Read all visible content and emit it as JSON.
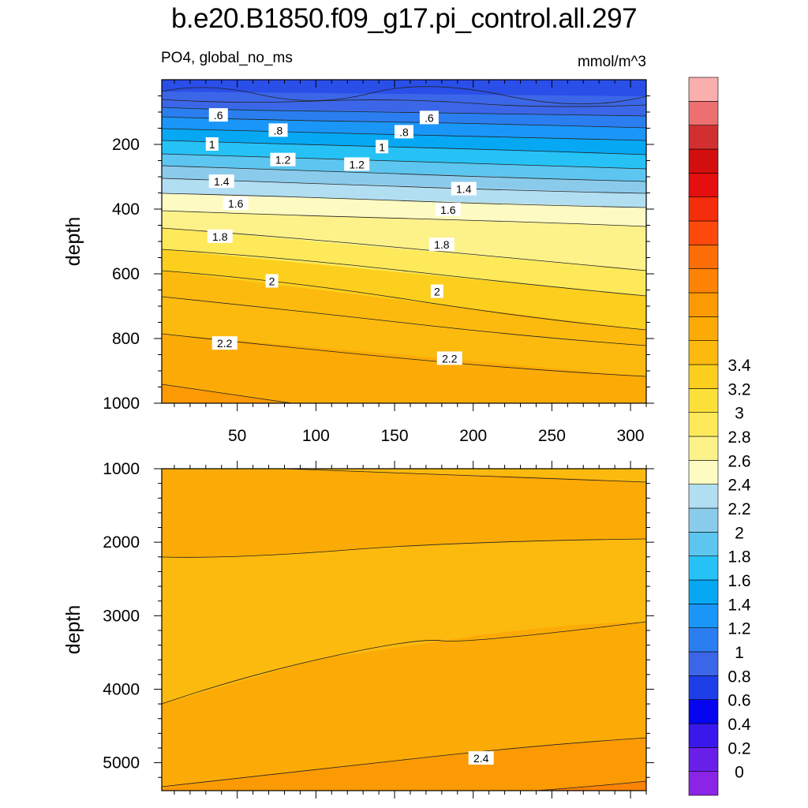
{
  "title": "b.e20.B1850.f09_g17.pi_control.all.297",
  "left_string": "PO4, global_no_ms",
  "right_string": "mmol/m^3",
  "chart_data": [
    {
      "type": "contour",
      "panel": "upper",
      "ylabel": "depth",
      "xlabel": "",
      "xlim": [
        2,
        310
      ],
      "ylim": [
        1000,
        0
      ],
      "x_ticks": [
        50,
        100,
        150,
        200,
        250,
        300
      ],
      "y_ticks": [
        200,
        400,
        600,
        800,
        1000
      ],
      "contour_labels": [
        {
          "text": ".6",
          "x": 38,
          "y": 110
        },
        {
          "text": ".6",
          "x": 172,
          "y": 118
        },
        {
          "text": ".8",
          "x": 76,
          "y": 157
        },
        {
          "text": ".8",
          "x": 156,
          "y": 162
        },
        {
          "text": "1",
          "x": 34,
          "y": 200
        },
        {
          "text": "1",
          "x": 142,
          "y": 208
        },
        {
          "text": "1.2",
          "x": 79,
          "y": 248
        },
        {
          "text": "1.2",
          "x": 126,
          "y": 262
        },
        {
          "text": "1.4",
          "x": 40,
          "y": 315
        },
        {
          "text": "1.4",
          "x": 194,
          "y": 338
        },
        {
          "text": "1.6",
          "x": 49,
          "y": 383
        },
        {
          "text": "1.6",
          "x": 184,
          "y": 402
        },
        {
          "text": "1.8",
          "x": 39,
          "y": 485
        },
        {
          "text": "1.8",
          "x": 180,
          "y": 510
        },
        {
          "text": "2",
          "x": 72,
          "y": 623
        },
        {
          "text": "2",
          "x": 177,
          "y": 655
        },
        {
          "text": "2.2",
          "x": 42,
          "y": 815
        },
        {
          "text": "2.2",
          "x": 185,
          "y": 862
        }
      ]
    },
    {
      "type": "contour",
      "panel": "lower",
      "ylabel": "depth",
      "xlabel": "",
      "xlim": [
        2,
        310
      ],
      "ylim": [
        5380,
        1000
      ],
      "y_ticks": [
        1000,
        2000,
        3000,
        4000,
        5000
      ],
      "contour_labels": [
        {
          "text": "2.4",
          "x": 205,
          "y": 4940
        }
      ]
    }
  ],
  "colorbar": {
    "labels": [
      "3.4",
      "3.2",
      "3",
      "2.8",
      "2.6",
      "2.4",
      "2.2",
      "2",
      "1.8",
      "1.6",
      "1.4",
      "1.2",
      "1",
      "0.8",
      "0.6",
      "0.4",
      "0.2",
      "0"
    ],
    "colors": [
      "#8a24e6",
      "#6a1fe8",
      "#3a18ec",
      "#0505f0",
      "#1e3ee8",
      "#3c66e8",
      "#2a7ef0",
      "#1a96f8",
      "#06a8f4",
      "#26c2f6",
      "#5cc6f0",
      "#8acbec",
      "#b2def2",
      "#fdfbc2",
      "#fdf28a",
      "#fde95a",
      "#fce03a",
      "#fccf1e",
      "#fcba0f",
      "#fcab06",
      "#fc9a04",
      "#fc8305",
      "#fd6d08",
      "#fd4a0c",
      "#f42d0c",
      "#e60f0f",
      "#d20e0e",
      "#d23030",
      "#ec7070",
      "#faaeae"
    ]
  }
}
